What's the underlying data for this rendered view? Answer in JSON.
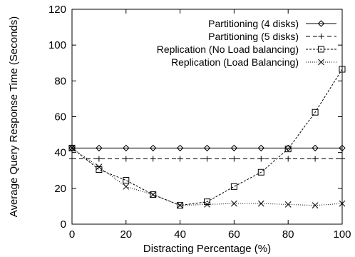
{
  "chart_data": {
    "type": "line",
    "xlabel": "Distracting Percentage (%)",
    "ylabel": "Average Query Response Time (Seconds)",
    "xlim": [
      0,
      100
    ],
    "ylim": [
      0,
      120
    ],
    "xticks": [
      0,
      20,
      40,
      60,
      80,
      100
    ],
    "yticks": [
      0,
      20,
      40,
      60,
      80,
      100,
      120
    ],
    "grid": false,
    "legend_position": "top-right",
    "x": [
      0,
      10,
      20,
      30,
      40,
      50,
      60,
      70,
      80,
      90,
      100
    ],
    "series": [
      {
        "name": "Partitioning (4 disks)",
        "marker": "diamond",
        "line": "solid",
        "values": [
          42.5,
          42.5,
          42.5,
          42.5,
          42.5,
          42.5,
          42.5,
          42.5,
          42.5,
          42.5,
          42.5
        ]
      },
      {
        "name": "Partitioning (5 disks)",
        "marker": "plus",
        "line": "dashed",
        "values": [
          36.5,
          36.5,
          36.5,
          36.5,
          36.5,
          36.5,
          36.5,
          36.5,
          36.5,
          36.5,
          36.5
        ]
      },
      {
        "name": "Replication (No Load balancing)",
        "marker": "square",
        "line": "dash-dot",
        "values": [
          42.5,
          30.5,
          24.5,
          16.5,
          10.5,
          12.5,
          21,
          29,
          42,
          62.5,
          86.5
        ]
      },
      {
        "name": "Replication (Load Balancing)",
        "marker": "x",
        "line": "dotted",
        "values": [
          42.5,
          32,
          21,
          16.5,
          10.5,
          11,
          11.5,
          11.5,
          11,
          10.5,
          11.5
        ]
      }
    ]
  }
}
